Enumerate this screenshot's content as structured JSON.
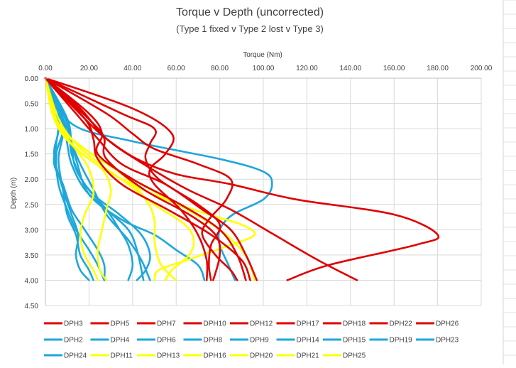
{
  "chart_data": {
    "type": "line",
    "title": "Torque v Depth (uncorrected)",
    "subtitle": "(Type 1 fixed v Type 2 lost v Type 3)",
    "xlabel": "Torque (Nm)",
    "ylabel": "Depth (m)",
    "xlim": [
      0,
      200
    ],
    "ylim": [
      0,
      4.5
    ],
    "y_reversed": true,
    "x_axis_position": "top",
    "x_ticks": [
      "0.00",
      "20.00",
      "40.00",
      "60.00",
      "80.00",
      "100.00",
      "120.00",
      "140.00",
      "160.00",
      "180.00",
      "200.00"
    ],
    "y_ticks": [
      "0.00",
      "0.50",
      "1.00",
      "1.50",
      "2.00",
      "2.50",
      "3.00",
      "3.50",
      "4.00",
      "4.50"
    ],
    "grid": true,
    "legend_position": "bottom",
    "colors": {
      "type1": "#e00000",
      "type2": "#1ea7db",
      "type3": "#ffff00"
    },
    "series": [
      {
        "name": "DPH3",
        "group": "type1",
        "points": [
          [
            0,
            0
          ],
          [
            22,
            0.9
          ],
          [
            27,
            1.2
          ],
          [
            28,
            1.6
          ],
          [
            45,
            2.2
          ],
          [
            66,
            2.7
          ],
          [
            78,
            3.1
          ],
          [
            80,
            3.5
          ],
          [
            77,
            4.0
          ]
        ]
      },
      {
        "name": "DPH5",
        "group": "type1",
        "points": [
          [
            0,
            0
          ],
          [
            18,
            0.8
          ],
          [
            22,
            1.2
          ],
          [
            24,
            1.6
          ],
          [
            35,
            2.1
          ],
          [
            56,
            2.6
          ],
          [
            76,
            3.1
          ],
          [
            90,
            3.6
          ],
          [
            94,
            4.0
          ]
        ]
      },
      {
        "name": "DPH7",
        "group": "type1",
        "points": [
          [
            0,
            0
          ],
          [
            20,
            0.7
          ],
          [
            26,
            1.1
          ],
          [
            24,
            1.5
          ],
          [
            40,
            2.0
          ],
          [
            62,
            2.5
          ],
          [
            80,
            3.0
          ],
          [
            88,
            3.5
          ],
          [
            92,
            4.0
          ]
        ]
      },
      {
        "name": "DPH10",
        "group": "type1",
        "points": [
          [
            0,
            0
          ],
          [
            35,
            0.7
          ],
          [
            50,
            1.0
          ],
          [
            48,
            1.3
          ],
          [
            46,
            1.6
          ],
          [
            52,
            2.0
          ],
          [
            70,
            2.5
          ],
          [
            80,
            2.9
          ],
          [
            76,
            3.3
          ],
          [
            75,
            3.7
          ],
          [
            76,
            4.0
          ]
        ]
      },
      {
        "name": "DPH12",
        "group": "type1",
        "points": [
          [
            0,
            0
          ],
          [
            40,
            0.6
          ],
          [
            58,
            1.1
          ],
          [
            55,
            1.5
          ],
          [
            48,
            1.8
          ],
          [
            50,
            2.1
          ],
          [
            62,
            2.6
          ],
          [
            70,
            3.1
          ],
          [
            74,
            3.6
          ],
          [
            74,
            4.0
          ]
        ]
      },
      {
        "name": "DPH17",
        "group": "type1",
        "points": [
          [
            0,
            0
          ],
          [
            18,
            0.8
          ],
          [
            28,
            1.2
          ],
          [
            42,
            1.6
          ],
          [
            60,
            1.9
          ],
          [
            85,
            2.1
          ],
          [
            115,
            2.4
          ],
          [
            160,
            2.7
          ],
          [
            180,
            3.1
          ],
          [
            170,
            3.3
          ],
          [
            130,
            3.7
          ],
          [
            111,
            4.0
          ]
        ]
      },
      {
        "name": "DPH18",
        "group": "type1",
        "points": [
          [
            0,
            0
          ],
          [
            28,
            0.7
          ],
          [
            40,
            1.1
          ],
          [
            50,
            1.4
          ],
          [
            70,
            1.7
          ],
          [
            85,
            2.0
          ],
          [
            83,
            2.4
          ],
          [
            75,
            2.8
          ],
          [
            72,
            3.1
          ],
          [
            78,
            3.5
          ],
          [
            85,
            3.8
          ],
          [
            88,
            4.0
          ]
        ]
      },
      {
        "name": "DPH22",
        "group": "type1",
        "points": [
          [
            0,
            0
          ],
          [
            14,
            0.7
          ],
          [
            24,
            1.2
          ],
          [
            35,
            1.7
          ],
          [
            55,
            2.1
          ],
          [
            72,
            2.6
          ],
          [
            85,
            3.0
          ],
          [
            92,
            3.5
          ],
          [
            97,
            4.0
          ]
        ]
      },
      {
        "name": "DPH26",
        "group": "type1",
        "points": [
          [
            0,
            0
          ],
          [
            16,
            0.6
          ],
          [
            28,
            1.2
          ],
          [
            45,
            1.7
          ],
          [
            65,
            2.2
          ],
          [
            85,
            2.6
          ],
          [
            105,
            3.1
          ],
          [
            125,
            3.6
          ],
          [
            143,
            4.0
          ]
        ]
      },
      {
        "name": "DPH2",
        "group": "type2",
        "points": [
          [
            0,
            0
          ],
          [
            6,
            0.7
          ],
          [
            5,
            1.3
          ],
          [
            4,
            1.7
          ],
          [
            8,
            2.1
          ],
          [
            12,
            2.6
          ],
          [
            18,
            3.0
          ],
          [
            24,
            3.4
          ],
          [
            27,
            3.7
          ],
          [
            27,
            4.0
          ]
        ]
      },
      {
        "name": "DPH4",
        "group": "type2",
        "points": [
          [
            0,
            0
          ],
          [
            8,
            0.8
          ],
          [
            10,
            1.3
          ],
          [
            12,
            1.7
          ],
          [
            18,
            2.2
          ],
          [
            28,
            2.6
          ],
          [
            38,
            3.0
          ],
          [
            42,
            3.4
          ],
          [
            45,
            4.0
          ]
        ]
      },
      {
        "name": "DPH6",
        "group": "type2",
        "points": [
          [
            0,
            0
          ],
          [
            10,
            0.8
          ],
          [
            12,
            1.3
          ],
          [
            14,
            1.8
          ],
          [
            22,
            2.3
          ],
          [
            34,
            2.7
          ],
          [
            44,
            3.1
          ],
          [
            48,
            3.5
          ],
          [
            46,
            3.8
          ],
          [
            42,
            4.0
          ]
        ]
      },
      {
        "name": "DPH8",
        "group": "type2",
        "points": [
          [
            0,
            0
          ],
          [
            8,
            0.9
          ],
          [
            12,
            1.3
          ],
          [
            16,
            1.7
          ],
          [
            22,
            2.2
          ],
          [
            28,
            2.7
          ],
          [
            38,
            3.2
          ],
          [
            44,
            3.6
          ],
          [
            48,
            4.0
          ]
        ]
      },
      {
        "name": "DPH9",
        "group": "type2",
        "points": [
          [
            0,
            0
          ],
          [
            12,
            0.9
          ],
          [
            40,
            1.25
          ],
          [
            80,
            1.6
          ],
          [
            100,
            1.85
          ],
          [
            104,
            2.1
          ],
          [
            100,
            2.4
          ],
          [
            86,
            2.7
          ],
          [
            80,
            3.0
          ],
          [
            80,
            3.3
          ],
          [
            84,
            3.7
          ],
          [
            87,
            4.0
          ]
        ]
      },
      {
        "name": "DPH14",
        "group": "type2",
        "points": [
          [
            0,
            0
          ],
          [
            8,
            0.9
          ],
          [
            5,
            1.5
          ],
          [
            6,
            2.1
          ],
          [
            10,
            2.6
          ],
          [
            14,
            3.0
          ],
          [
            20,
            3.4
          ],
          [
            24,
            3.7
          ],
          [
            27,
            4.0
          ]
        ]
      },
      {
        "name": "DPH15",
        "group": "type2",
        "points": [
          [
            0,
            0
          ],
          [
            6,
            0.9
          ],
          [
            4,
            1.5
          ],
          [
            8,
            2.2
          ],
          [
            12,
            2.7
          ],
          [
            15,
            3.1
          ],
          [
            14,
            3.5
          ],
          [
            16,
            3.8
          ],
          [
            20,
            4.0
          ]
        ]
      },
      {
        "name": "DPH19",
        "group": "type2",
        "points": [
          [
            0,
            0
          ],
          [
            10,
            1.0
          ],
          [
            14,
            1.6
          ],
          [
            20,
            2.3
          ],
          [
            35,
            2.8
          ],
          [
            50,
            3.1
          ],
          [
            60,
            3.4
          ],
          [
            70,
            3.7
          ],
          [
            73,
            4.0
          ]
        ]
      },
      {
        "name": "DPH23",
        "group": "type2",
        "points": [
          [
            0,
            0
          ],
          [
            10,
            0.9
          ],
          [
            12,
            1.5
          ],
          [
            18,
            2.1
          ],
          [
            28,
            2.6
          ],
          [
            34,
            3.0
          ],
          [
            38,
            3.3
          ],
          [
            40,
            3.7
          ],
          [
            38,
            4.0
          ]
        ]
      },
      {
        "name": "DPH24",
        "group": "type2",
        "points": [
          [
            0,
            0
          ],
          [
            8,
            0.9
          ],
          [
            6,
            1.6
          ],
          [
            8,
            2.2
          ],
          [
            10,
            2.7
          ],
          [
            14,
            3.1
          ],
          [
            16,
            3.5
          ],
          [
            20,
            3.8
          ],
          [
            22,
            4.0
          ]
        ]
      },
      {
        "name": "DPH11",
        "group": "type3",
        "points": [
          [
            0,
            0
          ],
          [
            4,
            0.8
          ],
          [
            10,
            1.2
          ],
          [
            20,
            1.6
          ],
          [
            35,
            2.0
          ],
          [
            55,
            2.4
          ],
          [
            75,
            2.7
          ],
          [
            90,
            2.9
          ],
          [
            96,
            3.1
          ],
          [
            85,
            3.3
          ],
          [
            65,
            3.6
          ],
          [
            52,
            3.8
          ],
          [
            50,
            4.0
          ]
        ]
      },
      {
        "name": "DPH13",
        "group": "type3",
        "points": [
          [
            0,
            0
          ],
          [
            6,
            0.8
          ],
          [
            14,
            1.3
          ],
          [
            25,
            1.7
          ],
          [
            38,
            2.1
          ],
          [
            50,
            2.5
          ],
          [
            64,
            2.9
          ],
          [
            68,
            3.2
          ],
          [
            66,
            3.5
          ],
          [
            58,
            3.8
          ],
          [
            55,
            4.0
          ]
        ]
      },
      {
        "name": "DPH16",
        "group": "type3",
        "points": [
          [
            0,
            0
          ],
          [
            4,
            0.8
          ],
          [
            12,
            1.3
          ],
          [
            20,
            1.8
          ],
          [
            22,
            2.3
          ],
          [
            18,
            2.7
          ],
          [
            16,
            3.1
          ],
          [
            18,
            3.5
          ],
          [
            22,
            3.8
          ],
          [
            24,
            4.0
          ]
        ]
      },
      {
        "name": "DPH20",
        "group": "type3",
        "points": [
          [
            0,
            0
          ],
          [
            5,
            0.9
          ],
          [
            18,
            1.4
          ],
          [
            32,
            1.8
          ],
          [
            48,
            2.2
          ],
          [
            65,
            2.6
          ],
          [
            80,
            3.0
          ],
          [
            90,
            3.4
          ],
          [
            94,
            3.7
          ],
          [
            96,
            4.0
          ]
        ]
      },
      {
        "name": "DPH21",
        "group": "type3",
        "points": [
          [
            0,
            0
          ],
          [
            6,
            0.9
          ],
          [
            18,
            1.4
          ],
          [
            35,
            1.9
          ],
          [
            46,
            2.4
          ],
          [
            50,
            2.8
          ],
          [
            50,
            3.2
          ],
          [
            52,
            3.6
          ],
          [
            55,
            3.8
          ],
          [
            60,
            4.0
          ]
        ]
      },
      {
        "name": "DPH25",
        "group": "type3",
        "points": [
          [
            0,
            0
          ],
          [
            5,
            0.9
          ],
          [
            14,
            1.4
          ],
          [
            26,
            1.8
          ],
          [
            30,
            2.2
          ],
          [
            28,
            2.6
          ],
          [
            26,
            3.0
          ],
          [
            24,
            3.4
          ],
          [
            25,
            3.8
          ],
          [
            28,
            4.0
          ]
        ]
      }
    ]
  }
}
